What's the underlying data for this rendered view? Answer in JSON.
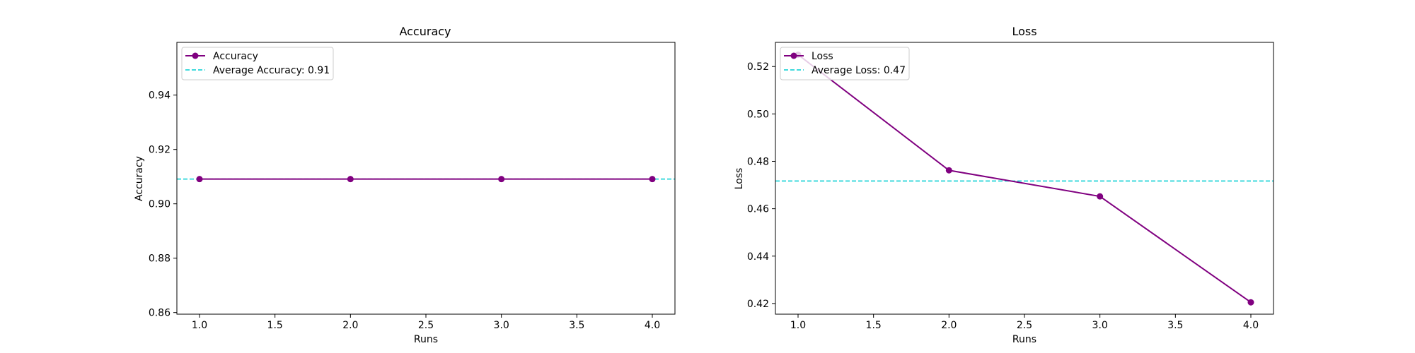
{
  "colors": {
    "series": "#800080",
    "average": "#00CED1",
    "axes": "#000000",
    "legend_border": "#cccccc"
  },
  "chart_data": [
    {
      "type": "line",
      "title": "Accuracy",
      "xlabel": "Runs",
      "ylabel": "Accuracy",
      "xlim": [
        0.85,
        4.15
      ],
      "ylim": [
        0.8594,
        0.9594
      ],
      "x_ticks": [
        1.0,
        1.5,
        2.0,
        2.5,
        3.0,
        3.5,
        4.0
      ],
      "x_tick_labels": [
        "1.0",
        "1.5",
        "2.0",
        "2.5",
        "3.0",
        "3.5",
        "4.0"
      ],
      "y_ticks": [
        0.86,
        0.88,
        0.9,
        0.92,
        0.94
      ],
      "y_tick_labels": [
        "0.86",
        "0.88",
        "0.90",
        "0.92",
        "0.94"
      ],
      "x": [
        1,
        2,
        3,
        4
      ],
      "series": [
        {
          "name": "Accuracy",
          "values": [
            0.9091,
            0.9091,
            0.9091,
            0.9091
          ]
        }
      ],
      "average": {
        "label": "Average Accuracy: 0.91",
        "value": 0.9091
      },
      "legend": "top-left",
      "grid": false
    },
    {
      "type": "line",
      "title": "Loss",
      "xlabel": "Runs",
      "ylabel": "Loss",
      "xlim": [
        0.85,
        4.15
      ],
      "ylim": [
        0.4155,
        0.5302
      ],
      "x_ticks": [
        1.0,
        1.5,
        2.0,
        2.5,
        3.0,
        3.5,
        4.0
      ],
      "x_tick_labels": [
        "1.0",
        "1.5",
        "2.0",
        "2.5",
        "3.0",
        "3.5",
        "4.0"
      ],
      "y_ticks": [
        0.42,
        0.44,
        0.46,
        0.48,
        0.5,
        0.52
      ],
      "y_tick_labels": [
        "0.42",
        "0.44",
        "0.46",
        "0.48",
        "0.50",
        "0.52"
      ],
      "x": [
        1,
        2,
        3,
        4
      ],
      "series": [
        {
          "name": "Loss",
          "values": [
            0.525,
            0.4762,
            0.4652,
            0.4205
          ]
        }
      ],
      "average": {
        "label": "Average Loss: 0.47",
        "value": 0.4717
      },
      "legend": "top-left",
      "grid": false
    }
  ]
}
